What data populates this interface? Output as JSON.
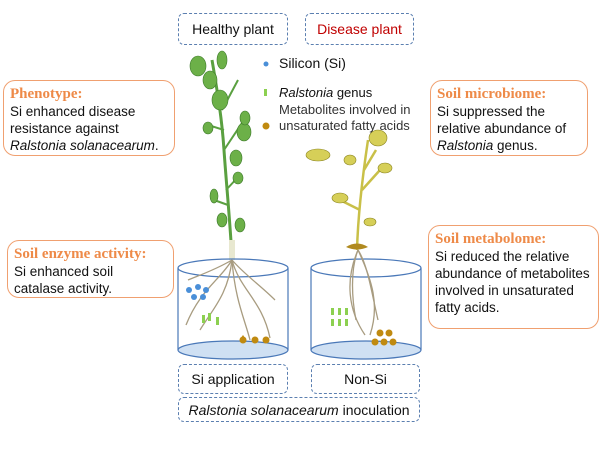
{
  "headers": {
    "healthy": "Healthy plant",
    "disease": "Disease plant"
  },
  "legend": {
    "silicon": "Silicon (Si)",
    "ralstonia_italic": "Ralstonia",
    "ralstonia_rest": " genus",
    "metabolites_line1": "Metabolites involved in",
    "metabolites_line2": "unsaturated fatty acids"
  },
  "cards": {
    "phenotype": {
      "title": "Phenotype:",
      "line1": "Si enhanced disease",
      "line2": "resistance against",
      "italic": "Ralstonia solanacearum",
      "tail": "."
    },
    "microbiome": {
      "title": "Soil microbiome:",
      "line1": "Si suppressed the",
      "line2": "relative abundance of",
      "italic": "Ralstonia",
      "tail": " genus."
    },
    "enzyme": {
      "title": "Soil enzyme activity:",
      "text": "Si enhanced soil catalase activity."
    },
    "metabolome": {
      "title": "Soil metabolome:",
      "text": "Si reduced the relative abundance of metabolites involved in unsaturated fatty acids."
    }
  },
  "labels": {
    "si_application": "Si application",
    "non_si": "Non-Si",
    "inoculation_italic": "Ralstonia solanacearum",
    "inoculation_rest": " inoculation"
  },
  "colors": {
    "silicon": "#4a8fd8",
    "ralstonia": "#8cd050",
    "metabolite": "#c08a10",
    "accent": "#ee8a48",
    "disease_text": "#c00000",
    "dash": "#5b7fb0"
  }
}
